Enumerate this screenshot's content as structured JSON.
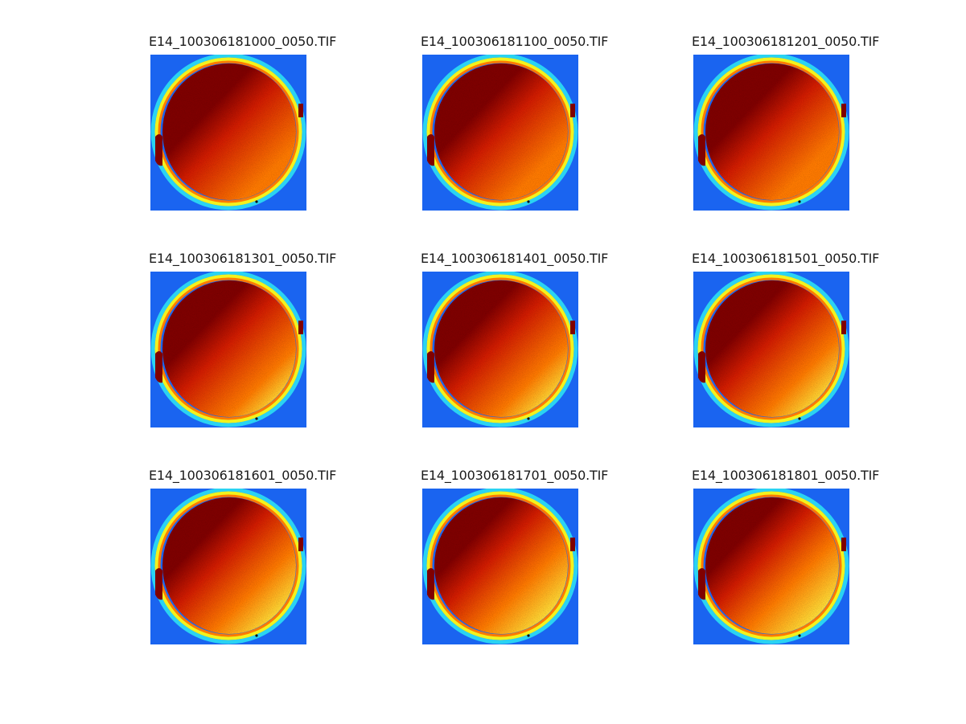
{
  "figure": {
    "panels": [
      {
        "title": "E14_100306181000_0050.TIF",
        "warmth": 0.0
      },
      {
        "title": "E14_100306181100_0050.TIF",
        "warmth": 0.1
      },
      {
        "title": "E14_100306181201_0050.TIF",
        "warmth": 0.18
      },
      {
        "title": "E14_100306181301_0050.TIF",
        "warmth": 0.32
      },
      {
        "title": "E14_100306181401_0050.TIF",
        "warmth": 0.42
      },
      {
        "title": "E14_100306181501_0050.TIF",
        "warmth": 0.52
      },
      {
        "title": "E14_100306181601_0050.TIF",
        "warmth": 0.68
      },
      {
        "title": "E14_100306181701_0050.TIF",
        "warmth": 0.8
      },
      {
        "title": "E14_100306181801_0050.TIF",
        "warmth": 0.9
      }
    ],
    "colormap": "jet",
    "colors": {
      "background_blue": "#1a64f0",
      "ring_cyan": "#2ee6f2",
      "ring_yellow": "#f2f21e",
      "disk_dark_red": "#800000",
      "disk_red": "#d21c00",
      "disk_orange": "#ff7a00",
      "disk_yellow": "#ffff4a"
    }
  }
}
